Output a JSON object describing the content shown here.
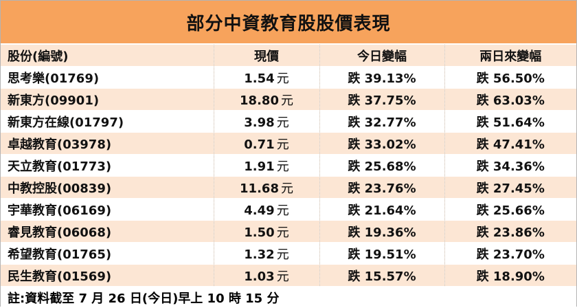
{
  "title": "部分中資教育股股價表現",
  "headers": {
    "name": "股份(編號)",
    "price": "現價",
    "today": "今日變幅",
    "twoday": "兩日來變幅"
  },
  "unit": "元",
  "rows": [
    {
      "name": "思考樂(01769)",
      "price": "1.54",
      "today": "跌 39.13%",
      "twoday": "跌 56.50%"
    },
    {
      "name": "新東方(09901)",
      "price": "18.80",
      "today": "跌 37.75%",
      "twoday": "跌 63.03%"
    },
    {
      "name": "新東方在線(01797)",
      "price": "3.98",
      "today": "跌 32.77%",
      "twoday": "跌 51.64%"
    },
    {
      "name": "卓越教育(03978)",
      "price": "0.71",
      "today": "跌 33.02%",
      "twoday": "跌 47.41%"
    },
    {
      "name": "天立教育(01773)",
      "price": "1.91",
      "today": "跌 25.68%",
      "twoday": "跌 34.36%"
    },
    {
      "name": "中教控股(00839)",
      "price": "11.68",
      "today": "跌 23.76%",
      "twoday": "跌 27.45%"
    },
    {
      "name": "宇華教育(06169)",
      "price": "4.49",
      "today": "跌 21.64%",
      "twoday": "跌 25.66%"
    },
    {
      "name": "睿見教育(06068)",
      "price": "1.50",
      "today": "跌 19.36%",
      "twoday": "跌 23.86%"
    },
    {
      "name": "希望教育(01765)",
      "price": "1.32",
      "today": "跌 19.51%",
      "twoday": "跌 23.70%"
    },
    {
      "name": "民生教育(01569)",
      "price": "1.03",
      "today": "跌 15.57%",
      "twoday": "跌 18.90%"
    }
  ],
  "note": "註:資料截至 7 月 26 日(今日)早上 10 時 15 分",
  "colors": {
    "title_bg": "#f7a35c",
    "band_bg": "#fce6d4"
  }
}
